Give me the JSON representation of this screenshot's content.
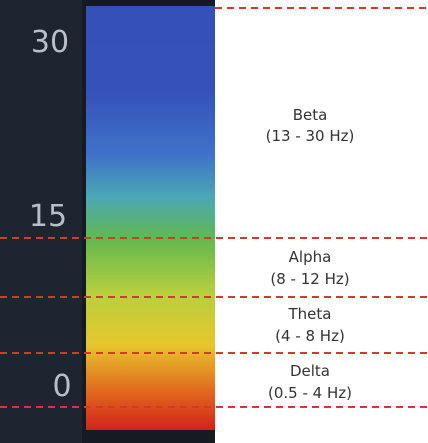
{
  "axis_labels": [
    "30",
    "15",
    "0"
  ],
  "bands": [
    {
      "name": "Beta",
      "range": "(13 - 30 Hz)"
    },
    {
      "name": "Alpha",
      "range": "(8 - 12 Hz)"
    },
    {
      "name": "Theta",
      "range": "(4 - 8 Hz)"
    },
    {
      "name": "Delta",
      "range": "(0.5 - 4 Hz)"
    }
  ]
}
